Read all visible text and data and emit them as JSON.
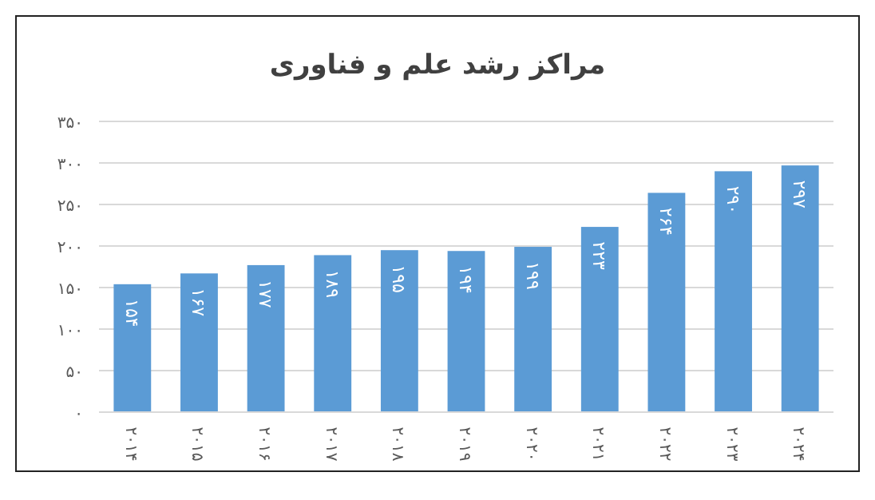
{
  "chart_data": {
    "type": "bar",
    "title": "مراکز رشد علم و فناوری",
    "categories": [
      "۲۰۱۴",
      "۲۰۱۵",
      "۲۰۱۶",
      "۲۰۱۷",
      "۲۰۱۸",
      "۲۰۱۹",
      "۲۰۲۰",
      "۲۰۲۱",
      "۲۰۲۲",
      "۲۰۲۳",
      "۲۰۲۴"
    ],
    "values": [
      154,
      167,
      177,
      189,
      195,
      194,
      199,
      223,
      264,
      290,
      297
    ],
    "value_labels": [
      "۱۵۴",
      "۱۶۷",
      "۱۷۷",
      "۱۸۹",
      "۱۹۵",
      "۱۹۴",
      "۱۹۹",
      "۲۲۳",
      "۲۶۴",
      "۲۹۰",
      "۲۹۷"
    ],
    "color": "#5b9bd5",
    "ylim": [
      0,
      350
    ],
    "yticks": [
      {
        "value": 0,
        "label": "۰"
      },
      {
        "value": 50,
        "label": "۵۰"
      },
      {
        "value": 100,
        "label": "۱۰۰"
      },
      {
        "value": 150,
        "label": "۱۵۰"
      },
      {
        "value": 200,
        "label": "۲۰۰"
      },
      {
        "value": 250,
        "label": "۲۵۰"
      },
      {
        "value": 300,
        "label": "۳۰۰"
      },
      {
        "value": 350,
        "label": "۳۵۰"
      }
    ],
    "grid": "y"
  }
}
